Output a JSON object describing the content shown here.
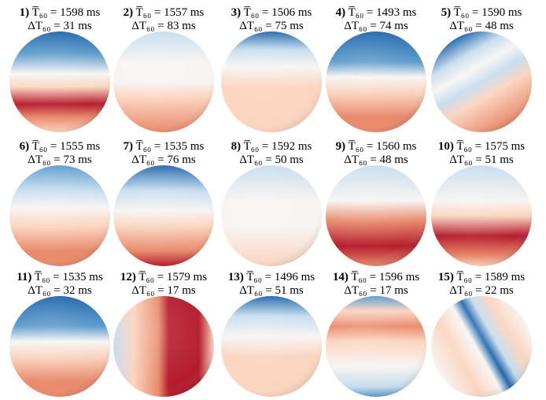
{
  "panels": [
    {
      "index": "1)",
      "mean": "T̅₆₀ = 1598 ms",
      "delta": "ΔT₆₀ = 31 ms"
    },
    {
      "index": "2)",
      "mean": "T̅₆₀ = 1557 ms",
      "delta": "ΔT₆₀ = 83 ms"
    },
    {
      "index": "3)",
      "mean": "T̅₆₀ = 1506 ms",
      "delta": "ΔT₆₀ = 75 ms"
    },
    {
      "index": "4)",
      "mean": "T̅₆₀ = 1493 ms",
      "delta": "ΔT₆₀ = 74 ms"
    },
    {
      "index": "5)",
      "mean": "T̅₆₀ = 1590 ms",
      "delta": "ΔT₆₀ = 48 ms"
    },
    {
      "index": "6)",
      "mean": "T̅₆₀ = 1555 ms",
      "delta": "ΔT₆₀ = 73 ms"
    },
    {
      "index": "7)",
      "mean": "T̅₆₀ = 1535 ms",
      "delta": "ΔT₆₀ = 76 ms"
    },
    {
      "index": "8)",
      "mean": "T̅₆₀ = 1592 ms",
      "delta": "ΔT₆₀ = 50 ms"
    },
    {
      "index": "9)",
      "mean": "T̅₆₀ = 1560 ms",
      "delta": "ΔT₆₀ = 48 ms"
    },
    {
      "index": "10)",
      "mean": "T̅₆₀ = 1575 ms",
      "delta": "ΔT₆₀ = 51 ms"
    },
    {
      "index": "11)",
      "mean": "T̅₆₀ = 1535 ms",
      "delta": "ΔT₆₀ = 32 ms"
    },
    {
      "index": "12)",
      "mean": "T̅₆₀ = 1579 ms",
      "delta": "ΔT₆₀ = 17 ms"
    },
    {
      "index": "13)",
      "mean": "T̅₆₀ = 1496 ms",
      "delta": "ΔT₆₀ = 51 ms"
    },
    {
      "index": "14)",
      "mean": "T̅₆₀ = 1596 ms",
      "delta": "ΔT₆₀ = 17 ms"
    },
    {
      "index": "15)",
      "mean": "T̅₆₀ = 1589 ms",
      "delta": "ΔT₆₀ = 22 ms"
    }
  ]
}
